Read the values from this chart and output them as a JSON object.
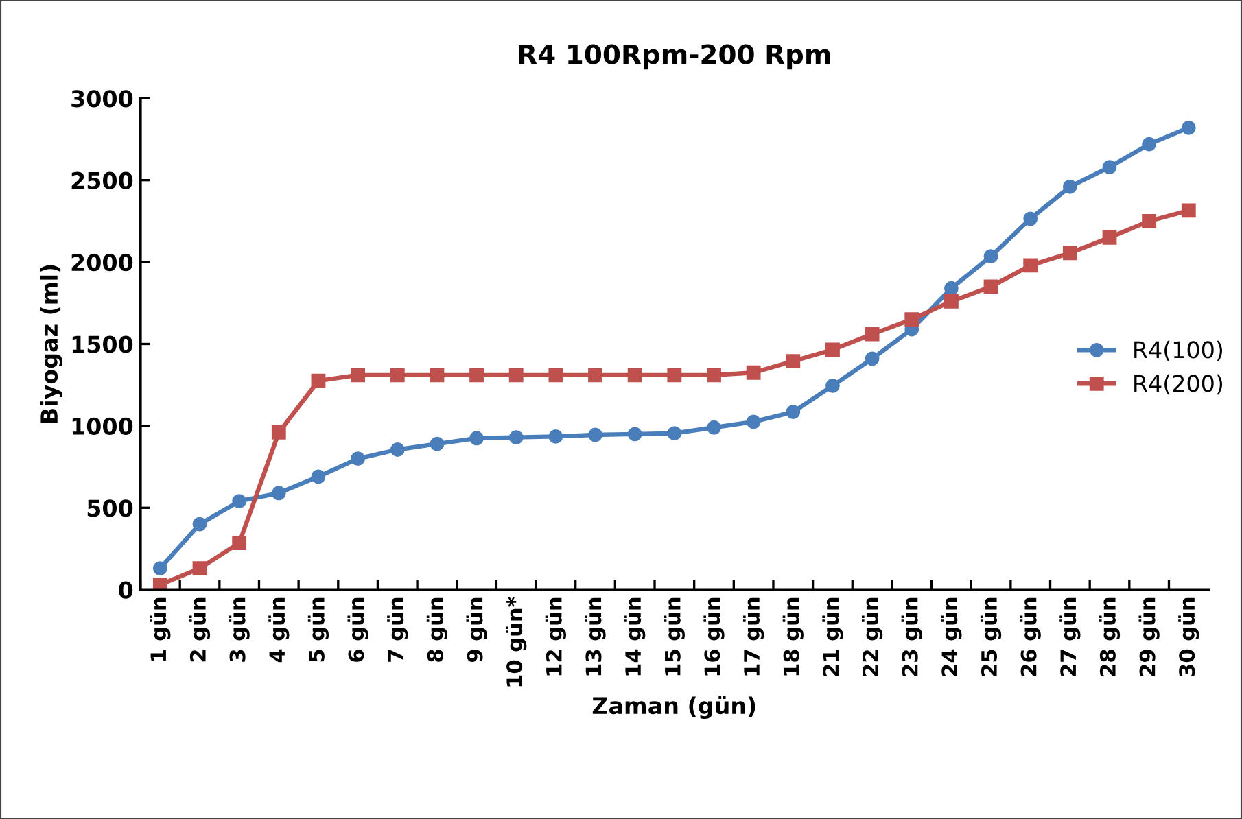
{
  "chart_data": {
    "type": "line",
    "title": "R4 100Rpm-200 Rpm",
    "xlabel": "Zaman (gün)",
    "ylabel": "Biyogaz (ml)",
    "categories": [
      "1 gün",
      "2 gün",
      "3 gün",
      "4 gün",
      "5 gün",
      "6 gün",
      "7 gün",
      "8 gün",
      "9 gün",
      "10 gün*",
      "12 gün",
      "13 gün",
      "14 gün",
      "15 gün",
      "16 gün",
      "17 gün",
      "18 gün",
      "21 gün",
      "22 gün",
      "23 gün",
      "24 gün",
      "25 gün",
      "26 gün",
      "27 gün",
      "28 gün",
      "29 gün",
      "30 gün"
    ],
    "series": [
      {
        "name": "R4(100)",
        "color": "#4a7ebb",
        "marker": "circle",
        "values": [
          130,
          400,
          540,
          590,
          690,
          800,
          855,
          890,
          925,
          930,
          935,
          945,
          950,
          955,
          990,
          1025,
          1085,
          1245,
          1410,
          1590,
          1840,
          2035,
          2265,
          2460,
          2580,
          2720,
          2820
        ]
      },
      {
        "name": "R4(200)",
        "color": "#c0504d",
        "marker": "square",
        "values": [
          30,
          130,
          285,
          960,
          1275,
          1310,
          1310,
          1310,
          1310,
          1310,
          1310,
          1310,
          1310,
          1310,
          1310,
          1325,
          1395,
          1465,
          1560,
          1650,
          1760,
          1850,
          1980,
          2055,
          2150,
          2250,
          2315
        ]
      }
    ],
    "ylim": [
      0,
      3000
    ],
    "yticks": [
      0,
      500,
      1000,
      1500,
      2000,
      2500,
      3000
    ],
    "grid": false,
    "legend": "right",
    "line_style": "solid"
  }
}
